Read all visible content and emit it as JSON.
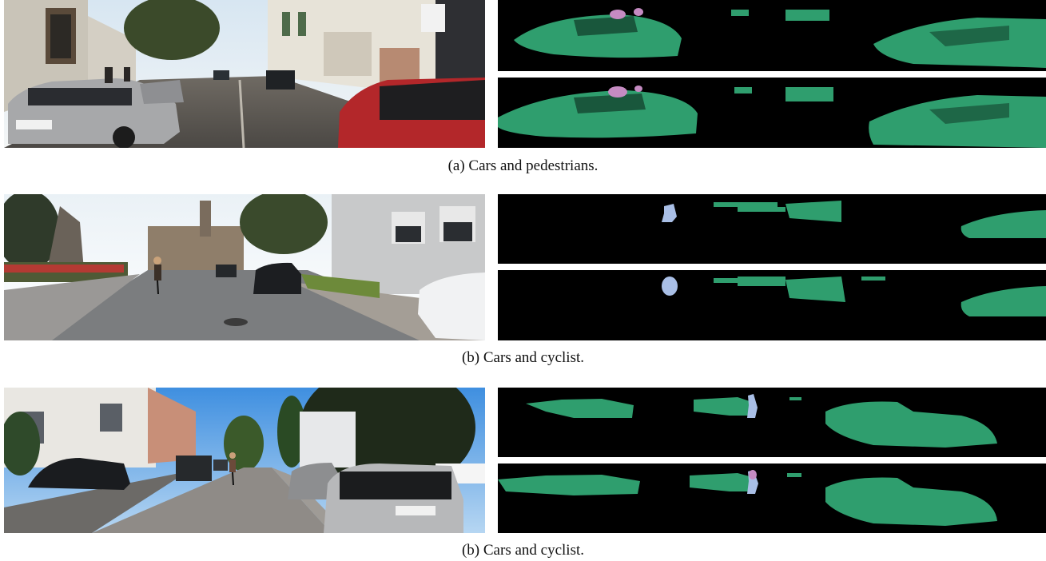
{
  "figure": {
    "panels": [
      {
        "id": "a",
        "caption": "(a) Cars and pedestrians."
      },
      {
        "id": "b1",
        "caption": "(b) Cars and cyclist."
      },
      {
        "id": "b2",
        "caption": "(b) Cars and cyclist."
      }
    ],
    "colors": {
      "car": "#2f9e6e",
      "pedestrian": "#c58bc2",
      "cyclist": "#a9bfe6",
      "background": "#000000"
    }
  }
}
